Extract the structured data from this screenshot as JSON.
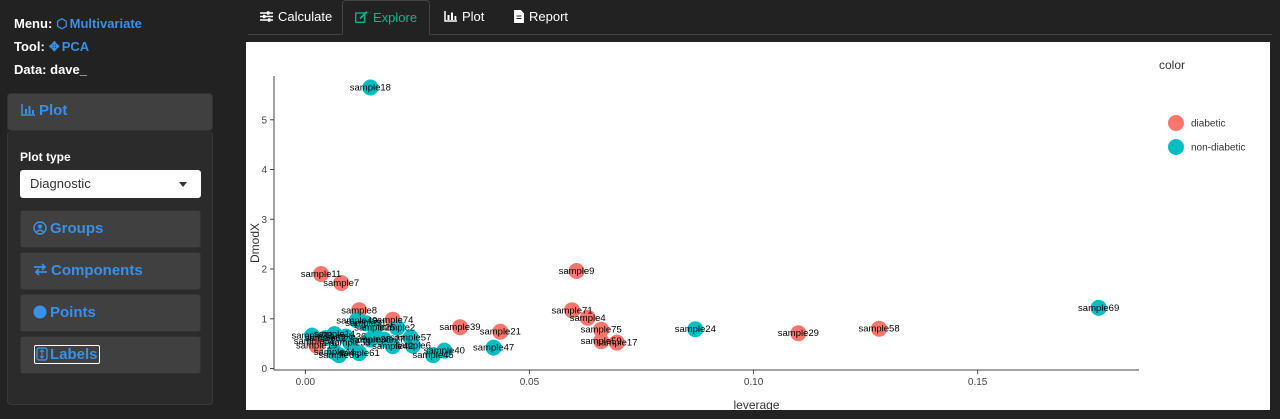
{
  "sidebar": {
    "menu_label": "Menu:",
    "menu_value": "Multivariate",
    "tool_label": "Tool:",
    "tool_value": "PCA",
    "data_label": "Data:",
    "data_value": "dave_",
    "plot_header": "Plot",
    "plot_type_label": "Plot type",
    "plot_type_value": "Diagnostic",
    "groups_label": "Groups",
    "components_label": "Components",
    "points_label": "Points",
    "labels_label": "Labels",
    "icons": {
      "menu": "cube-icon",
      "tool": "move-icon",
      "plot": "bar-chart-icon",
      "groups": "user-circle-icon",
      "components": "exchange-icon",
      "points": "circle-icon",
      "labels": "tag-updown-icon"
    }
  },
  "tabs": [
    {
      "label": "Calculate",
      "icon": "sliders-icon"
    },
    {
      "label": "Explore",
      "icon": "edit-icon"
    },
    {
      "label": "Plot",
      "icon": "bar-chart-icon"
    },
    {
      "label": "Report",
      "icon": "file-icon"
    }
  ],
  "colors": {
    "accent": "#3a8fe8",
    "active_tab": "#00bc8c",
    "diabetic": "#F8766D",
    "non_diabetic": "#00BFC4"
  },
  "chart_data": {
    "type": "scatter",
    "xlabel": "leverage",
    "ylabel": "DmodX",
    "xlim": [
      -0.007,
      0.186
    ],
    "ylim": [
      -0.03,
      5.88
    ],
    "xticks": [
      0.0,
      0.05,
      0.1,
      0.15
    ],
    "xtick_labels": [
      "0.00",
      "0.05",
      "0.10",
      "0.15"
    ],
    "yticks": [
      0,
      1,
      2,
      3,
      4,
      5
    ],
    "legend_title": "color",
    "legend": [
      {
        "name": "diabetic",
        "color": "#F8766D"
      },
      {
        "name": "non-diabetic",
        "color": "#00BFC4"
      }
    ],
    "points": [
      {
        "x": 0.0145,
        "y": 5.65,
        "group": "non-diabetic",
        "label": "sample18"
      },
      {
        "x": 0.0035,
        "y": 1.9,
        "group": "diabetic",
        "label": "sample11"
      },
      {
        "x": 0.008,
        "y": 1.72,
        "group": "diabetic",
        "label": "sample7"
      },
      {
        "x": 0.0605,
        "y": 1.96,
        "group": "diabetic",
        "label": "sample9"
      },
      {
        "x": 0.012,
        "y": 1.17,
        "group": "diabetic",
        "label": "sample8"
      },
      {
        "x": 0.0595,
        "y": 1.17,
        "group": "diabetic",
        "label": "sample71"
      },
      {
        "x": 0.063,
        "y": 1.02,
        "group": "diabetic",
        "label": "sample4"
      },
      {
        "x": 0.177,
        "y": 1.22,
        "group": "non-diabetic",
        "label": "sample69"
      },
      {
        "x": 0.128,
        "y": 0.8,
        "group": "diabetic",
        "label": "sample58"
      },
      {
        "x": 0.087,
        "y": 0.79,
        "group": "non-diabetic",
        "label": "sample24"
      },
      {
        "x": 0.11,
        "y": 0.71,
        "group": "diabetic",
        "label": "sample29"
      },
      {
        "x": 0.0435,
        "y": 0.74,
        "group": "diabetic",
        "label": "sample21"
      },
      {
        "x": 0.0345,
        "y": 0.83,
        "group": "diabetic",
        "label": "sample39"
      },
      {
        "x": 0.042,
        "y": 0.42,
        "group": "non-diabetic",
        "label": "sample47"
      },
      {
        "x": 0.0695,
        "y": 0.52,
        "group": "diabetic",
        "label": "sample17"
      },
      {
        "x": 0.066,
        "y": 0.78,
        "group": "diabetic",
        "label": "sample75"
      },
      {
        "x": 0.066,
        "y": 0.55,
        "group": "diabetic",
        "label": "sample59"
      },
      {
        "x": 0.0195,
        "y": 0.98,
        "group": "diabetic",
        "label": "sample74"
      },
      {
        "x": 0.0205,
        "y": 0.82,
        "group": "non-diabetic",
        "label": "sample2"
      },
      {
        "x": 0.031,
        "y": 0.36,
        "group": "non-diabetic",
        "label": "sample40"
      },
      {
        "x": 0.0285,
        "y": 0.27,
        "group": "non-diabetic",
        "label": "sample45"
      },
      {
        "x": 0.0135,
        "y": 0.91,
        "group": "non-diabetic",
        "label": "sample31"
      },
      {
        "x": 0.0115,
        "y": 0.97,
        "group": "non-diabetic",
        "label": "sample49"
      },
      {
        "x": 0.0155,
        "y": 0.82,
        "group": "non-diabetic",
        "label": "sample25"
      },
      {
        "x": 0.0065,
        "y": 0.69,
        "group": "non-diabetic",
        "label": "sample14"
      },
      {
        "x": 0.009,
        "y": 0.64,
        "group": "non-diabetic",
        "label": "sample36"
      },
      {
        "x": 0.002,
        "y": 0.55,
        "group": "diabetic",
        "label": "sample51"
      },
      {
        "x": 0.0045,
        "y": 0.61,
        "group": "non-diabetic",
        "label": "sample62"
      },
      {
        "x": 0.0015,
        "y": 0.66,
        "group": "non-diabetic",
        "label": "sample33"
      },
      {
        "x": 0.01,
        "y": 0.52,
        "group": "non-diabetic",
        "label": "sample53"
      },
      {
        "x": 0.012,
        "y": 0.31,
        "group": "non-diabetic",
        "label": "sample61"
      },
      {
        "x": 0.0075,
        "y": 0.27,
        "group": "non-diabetic",
        "label": "sample66"
      },
      {
        "x": 0.0175,
        "y": 0.58,
        "group": "non-diabetic",
        "label": "sample27"
      },
      {
        "x": 0.0235,
        "y": 0.62,
        "group": "non-diabetic",
        "label": "sample57"
      },
      {
        "x": 0.024,
        "y": 0.46,
        "group": "non-diabetic",
        "label": "sample6"
      },
      {
        "x": 0.0195,
        "y": 0.45,
        "group": "non-diabetic",
        "label": "sample42"
      },
      {
        "x": 0.0025,
        "y": 0.46,
        "group": "diabetic",
        "label": "sample19"
      },
      {
        "x": 0.0145,
        "y": 0.58,
        "group": "non-diabetic",
        "label": "sample38"
      },
      {
        "x": 0.0065,
        "y": 0.33,
        "group": "non-diabetic",
        "label": "sample44"
      }
    ]
  }
}
